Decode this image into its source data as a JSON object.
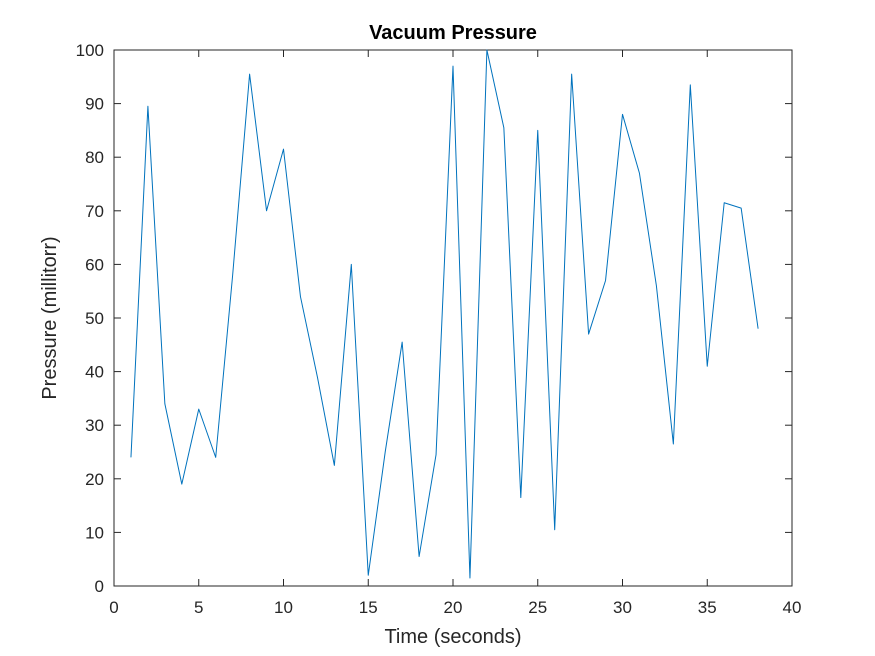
{
  "chart_data": {
    "type": "line",
    "title": "Vacuum Pressure",
    "xlabel": "Time (seconds)",
    "ylabel": "Pressure (millitorr)",
    "xlim": [
      0,
      40
    ],
    "ylim": [
      0,
      100
    ],
    "xticks": [
      0,
      5,
      10,
      15,
      20,
      25,
      30,
      35,
      40
    ],
    "yticks": [
      0,
      10,
      20,
      30,
      40,
      50,
      60,
      70,
      80,
      90,
      100
    ],
    "grid": false,
    "series": [
      {
        "name": "Pressure",
        "color": "#0072BD",
        "x": [
          1,
          2,
          3,
          4,
          5,
          6,
          7,
          8,
          9,
          10,
          11,
          12,
          13,
          14,
          15,
          16,
          17,
          18,
          19,
          20,
          21,
          22,
          23,
          24,
          25,
          26,
          27,
          28,
          29,
          30,
          31,
          32,
          33,
          34,
          35,
          36,
          37,
          38
        ],
        "y": [
          24,
          89.5,
          34,
          19,
          33,
          24,
          58,
          95.5,
          70,
          81.5,
          54,
          39,
          22.5,
          60,
          2,
          25,
          45.5,
          5.5,
          24.5,
          97,
          1.5,
          100,
          85.5,
          16.5,
          85,
          10.5,
          95.5,
          47,
          57,
          88,
          77,
          56,
          26.5,
          93.5,
          41,
          71.5,
          70.5,
          48
        ]
      }
    ]
  }
}
